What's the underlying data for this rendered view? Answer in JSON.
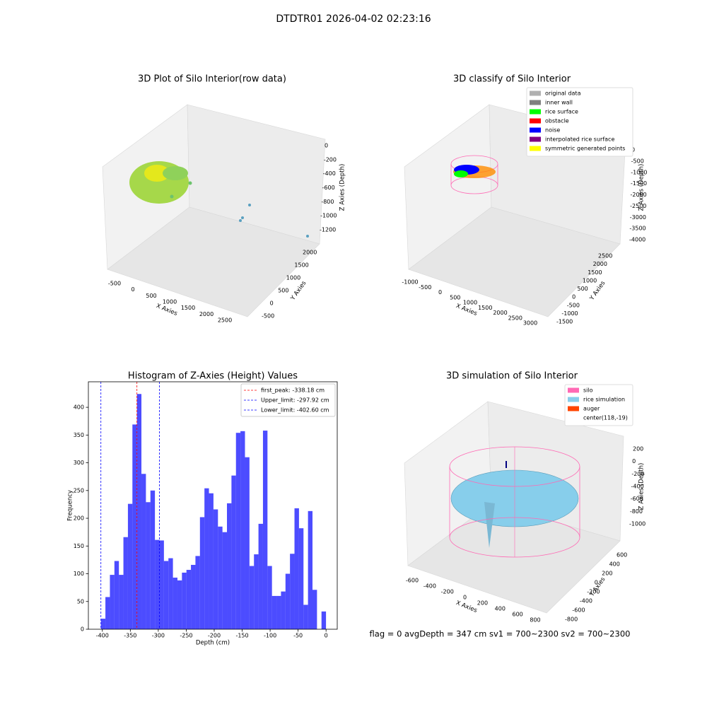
{
  "title": "DTDTR01 2026-04-02 02:23:16",
  "footer": "flag = 0     avgDepth = 347 cm  sv1 = 700~2300  sv2 = 700~2300",
  "chart_data": [
    {
      "type": "scatter3d",
      "title": "3D Plot of Silo Interior(row data)",
      "xlabel": "X Axies",
      "ylabel": "Y Axies",
      "zlabel": "Z Axies (Depth)",
      "xticks": [
        -500,
        0,
        500,
        1000,
        1500,
        2000,
        2500
      ],
      "yticks": [
        -500,
        0,
        500,
        1000,
        1500,
        2000
      ],
      "zticks": [
        0,
        -200,
        -400,
        -600,
        -800,
        -1000,
        -1200
      ]
    },
    {
      "type": "scatter3d",
      "title": "3D classify of Silo Interior",
      "xlabel": "X Axies",
      "ylabel": "Y Axies",
      "zlabel": "Z Axies (Depth)",
      "xticks": [
        -1000,
        -500,
        0,
        500,
        1000,
        1500,
        2000,
        2500,
        3000
      ],
      "yticks": [
        -1500,
        -1000,
        -500,
        0,
        500,
        1000,
        1500,
        2000,
        2500
      ],
      "zticks": [
        0,
        -500,
        -1000,
        -1500,
        -2000,
        -2500,
        -3000,
        -3500,
        -4000
      ],
      "legend": [
        {
          "name": "original data",
          "color": "#b0b0b0"
        },
        {
          "name": "inner wall",
          "color": "#808080"
        },
        {
          "name": "rice surface",
          "color": "#00ff00"
        },
        {
          "name": "obstacle",
          "color": "#ff0000"
        },
        {
          "name": "noise",
          "color": "#0000ff"
        },
        {
          "name": "interpolated rice surface",
          "color": "#800080"
        },
        {
          "name": "symmetric generated points",
          "color": "#ffff00"
        }
      ]
    },
    {
      "type": "histogram",
      "title": "Histogram of Z-Axies (Height) Values",
      "xlabel": "Depth (cm)",
      "ylabel": "Frequency",
      "color": "#0000ff",
      "alpha": 0.7,
      "bins": [
        -402.6,
        -394.55,
        -386.5,
        -378.45,
        -370.4,
        -362.35,
        -354.3,
        -346.25,
        -338.2,
        -330.15,
        -322.1,
        -314.05,
        -306,
        -297.95,
        -289.9,
        -281.85,
        -273.8,
        -265.75,
        -257.7,
        -249.65,
        -241.6,
        -233.55,
        -225.5,
        -217.45,
        -209.4,
        -201.35,
        -193.3,
        -185.25,
        -177.2,
        -169.15,
        -161.1,
        -153.05,
        -145,
        -136.95,
        -128.9,
        -120.85,
        -112.8,
        -104.75,
        -96.7,
        -88.65,
        -80.6,
        -72.55,
        -64.5,
        -56.45,
        -48.4,
        -40.35,
        -32.3,
        -24.25,
        -16.2,
        -8.15,
        -0.1
      ],
      "counts": [
        19,
        58,
        98,
        123,
        98,
        166,
        226,
        369,
        424,
        280,
        229,
        250,
        161,
        160,
        123,
        128,
        93,
        88,
        102,
        107,
        116,
        132,
        202,
        254,
        245,
        216,
        185,
        175,
        227,
        277,
        354,
        357,
        310,
        114,
        135,
        190,
        358,
        114,
        60,
        60,
        68,
        100,
        136,
        218,
        182,
        44,
        213,
        71,
        0,
        32
      ],
      "xlim": [
        -425,
        20
      ],
      "ylim": [
        0,
        446
      ],
      "xticks": [
        -400,
        -350,
        -300,
        -250,
        -200,
        -150,
        -100,
        -50,
        0
      ],
      "yticks": [
        0,
        50,
        100,
        150,
        200,
        250,
        300,
        350,
        400
      ],
      "vlines": [
        {
          "value": -338.18,
          "label": "first_peak: -338.18 cm",
          "color": "#ff0000"
        },
        {
          "value": -297.92,
          "label": "Upper_limit: -297.92 cm",
          "color": "#0000ff"
        },
        {
          "value": -402.6,
          "label": "Lower_limit: -402.60 cm",
          "color": "#0000ff"
        }
      ],
      "legend_position": "upper right"
    },
    {
      "type": "surface3d",
      "title": "3D simulation of Silo Interior",
      "xlabel": "X Axies",
      "ylabel": "Y Axies",
      "zlabel": "Z Axies (Depth)",
      "xticks": [
        -600,
        -400,
        -200,
        0,
        200,
        400,
        600,
        800
      ],
      "yticks": [
        -800,
        -600,
        -400,
        -200,
        0,
        200,
        400,
        600
      ],
      "zticks": [
        200,
        0,
        -200,
        -400,
        -600,
        -800,
        -1000
      ],
      "legend": [
        {
          "name": "silo",
          "color": "#ff69b4"
        },
        {
          "name": "rice simulation",
          "color": "#87ceeb"
        },
        {
          "name": "auger",
          "color": "#ff4500"
        },
        {
          "name": "center(118,-19)"
        }
      ]
    }
  ]
}
